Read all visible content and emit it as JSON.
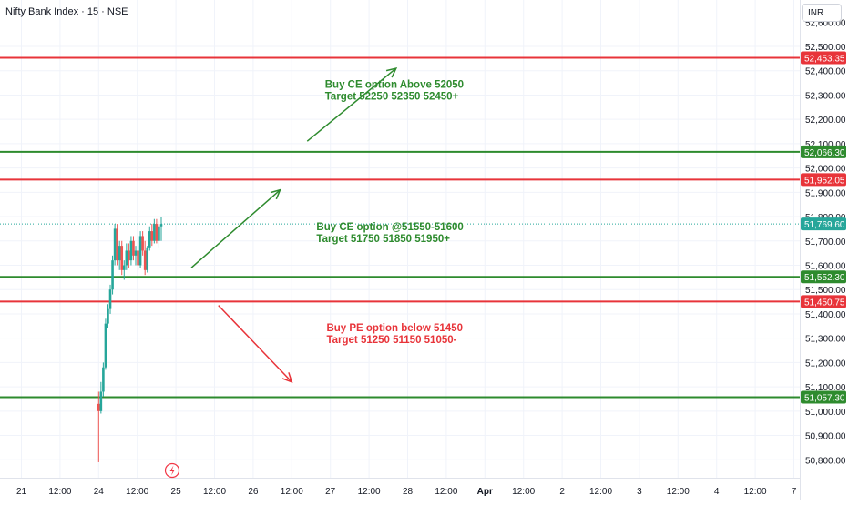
{
  "header": {
    "title": "Nifty Bank Index · 15 · NSE",
    "currency": "INR"
  },
  "chart_data": {
    "type": "candlestick",
    "title": "Nifty Bank Index · 15 · NSE",
    "y_ticks": [
      52500,
      52400,
      52300,
      52200,
      52100,
      52000,
      51900,
      51800,
      51700,
      51600,
      51500,
      51400,
      51300,
      51200,
      51100,
      51000,
      50900,
      50800
    ],
    "x_ticks": [
      {
        "label": "21",
        "t": 0
      },
      {
        "label": "12:00",
        "t": 0.5
      },
      {
        "label": "24",
        "t": 1
      },
      {
        "label": "12:00",
        "t": 1.5
      },
      {
        "label": "25",
        "t": 2
      },
      {
        "label": "12:00",
        "t": 2.5
      },
      {
        "label": "26",
        "t": 3
      },
      {
        "label": "12:00",
        "t": 3.5
      },
      {
        "label": "27",
        "t": 4
      },
      {
        "label": "12:00",
        "t": 4.5
      },
      {
        "label": "28",
        "t": 5
      },
      {
        "label": "12:00",
        "t": 5.5
      },
      {
        "label": "Apr",
        "t": 6
      },
      {
        "label": "12:00",
        "t": 6.5
      },
      {
        "label": "2",
        "t": 7
      },
      {
        "label": "12:00",
        "t": 7.5
      },
      {
        "label": "3",
        "t": 8
      },
      {
        "label": "12:00",
        "t": 8.5
      },
      {
        "label": "4",
        "t": 9
      },
      {
        "label": "12:00",
        "t": 9.5
      },
      {
        "label": "7",
        "t": 10
      }
    ],
    "levels": [
      {
        "value": 52453.35,
        "label": "52,453.35",
        "color": "#e8343a"
      },
      {
        "value": 52066.3,
        "label": "52,066.30",
        "color": "#2e8b2e"
      },
      {
        "value": 51952.05,
        "label": "51,952.05",
        "color": "#e8343a"
      },
      {
        "value": 51552.3,
        "label": "51,552.30",
        "color": "#2e8b2e"
      },
      {
        "value": 51450.75,
        "label": "51,450.75",
        "color": "#e8343a"
      },
      {
        "value": 51057.3,
        "label": "51,057.30",
        "color": "#2e8b2e"
      }
    ],
    "last_price": {
      "value": 51769.6,
      "label": "51,769.60",
      "color": "#26a69a"
    },
    "candles": [
      {
        "t": 1.0,
        "o": 51030,
        "h": 51080,
        "l": 50790,
        "c": 51000
      },
      {
        "t": 1.03,
        "o": 51000,
        "h": 51120,
        "l": 50990,
        "c": 51080
      },
      {
        "t": 1.06,
        "o": 51080,
        "h": 51200,
        "l": 51060,
        "c": 51180
      },
      {
        "t": 1.09,
        "o": 51180,
        "h": 51380,
        "l": 51170,
        "c": 51360
      },
      {
        "t": 1.12,
        "o": 51360,
        "h": 51440,
        "l": 51340,
        "c": 51420
      },
      {
        "t": 1.15,
        "o": 51420,
        "h": 51520,
        "l": 51400,
        "c": 51500
      },
      {
        "t": 1.18,
        "o": 51500,
        "h": 51640,
        "l": 51480,
        "c": 51620
      },
      {
        "t": 1.21,
        "o": 51620,
        "h": 51770,
        "l": 51600,
        "c": 51750
      },
      {
        "t": 1.24,
        "o": 51750,
        "h": 51770,
        "l": 51600,
        "c": 51620
      },
      {
        "t": 1.27,
        "o": 51620,
        "h": 51700,
        "l": 51580,
        "c": 51680
      },
      {
        "t": 1.3,
        "o": 51680,
        "h": 51700,
        "l": 51560,
        "c": 51580
      },
      {
        "t": 1.33,
        "o": 51580,
        "h": 51620,
        "l": 51540,
        "c": 51600
      },
      {
        "t": 1.36,
        "o": 51600,
        "h": 51690,
        "l": 51580,
        "c": 51660
      },
      {
        "t": 1.39,
        "o": 51660,
        "h": 51690,
        "l": 51590,
        "c": 51620
      },
      {
        "t": 1.42,
        "o": 51620,
        "h": 51720,
        "l": 51600,
        "c": 51700
      },
      {
        "t": 1.45,
        "o": 51700,
        "h": 51720,
        "l": 51620,
        "c": 51640
      },
      {
        "t": 1.48,
        "o": 51640,
        "h": 51680,
        "l": 51600,
        "c": 51660
      },
      {
        "t": 1.51,
        "o": 51660,
        "h": 51680,
        "l": 51580,
        "c": 51600
      },
      {
        "t": 1.54,
        "o": 51600,
        "h": 51740,
        "l": 51590,
        "c": 51720
      },
      {
        "t": 1.57,
        "o": 51720,
        "h": 51740,
        "l": 51640,
        "c": 51660
      },
      {
        "t": 1.6,
        "o": 51660,
        "h": 51700,
        "l": 51560,
        "c": 51580
      },
      {
        "t": 1.63,
        "o": 51580,
        "h": 51680,
        "l": 51570,
        "c": 51670
      },
      {
        "t": 1.66,
        "o": 51670,
        "h": 51760,
        "l": 51660,
        "c": 51740
      },
      {
        "t": 1.69,
        "o": 51740,
        "h": 51770,
        "l": 51680,
        "c": 51700
      },
      {
        "t": 1.72,
        "o": 51700,
        "h": 51790,
        "l": 51690,
        "c": 51770
      },
      {
        "t": 1.75,
        "o": 51770,
        "h": 51790,
        "l": 51690,
        "c": 51700
      },
      {
        "t": 1.78,
        "o": 51700,
        "h": 51780,
        "l": 51670,
        "c": 51760
      },
      {
        "t": 1.81,
        "o": 51760,
        "h": 51800,
        "l": 51700,
        "c": 51769.6
      }
    ],
    "annotations": [
      {
        "lines": [
          "Buy CE option Above 52050",
          "Target 52250 52350 52450+"
        ],
        "color": "#2e8b2e",
        "t": 3.93,
        "value": 52330
      },
      {
        "lines": [
          "Buy CE option @51550-51600",
          "Target 51750 51850 51950+"
        ],
        "color": "#2e8b2e",
        "t": 3.82,
        "value": 51745
      },
      {
        "lines": [
          "Buy PE option below 51450",
          "Target 51250 51150 51050-"
        ],
        "color": "#e8343a",
        "t": 3.95,
        "value": 51328
      }
    ],
    "arrows": [
      {
        "color": "#2e8b2e",
        "from": {
          "t": 3.7,
          "v": 52110
        },
        "to": {
          "t": 4.85,
          "v": 52410
        }
      },
      {
        "color": "#2e8b2e",
        "from": {
          "t": 2.2,
          "v": 51590
        },
        "to": {
          "t": 3.35,
          "v": 51910
        }
      },
      {
        "color": "#e8343a",
        "from": {
          "t": 2.55,
          "v": 51435
        },
        "to": {
          "t": 3.5,
          "v": 51120
        }
      }
    ]
  }
}
